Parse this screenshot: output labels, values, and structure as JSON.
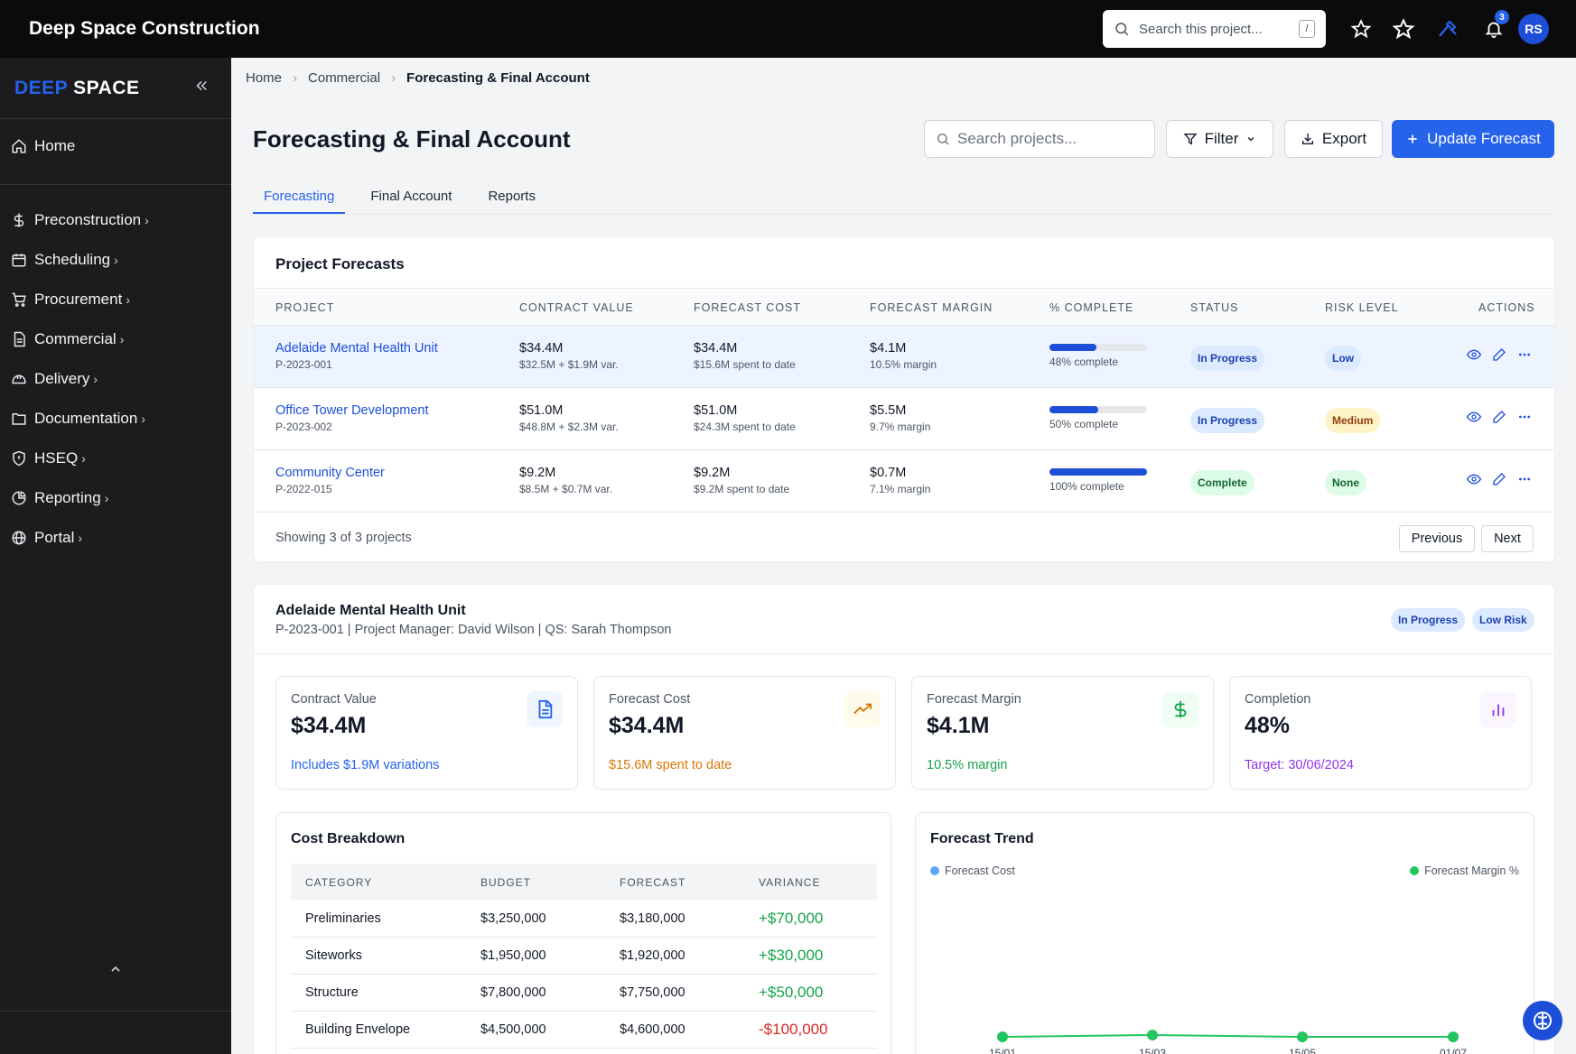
{
  "app": {
    "title": "Deep Space Construction"
  },
  "topbar": {
    "search_placeholder": "Search this project...",
    "search_shortcut": "/",
    "notification_count": "3",
    "avatar_initials": "RS"
  },
  "sidebar": {
    "brand_part1": "DEEP",
    "brand_part2": "SPACE",
    "items": [
      {
        "label": "Home",
        "icon": "home-icon"
      },
      {
        "label": "Preconstruction",
        "icon": "dollar-icon"
      },
      {
        "label": "Scheduling",
        "icon": "calendar-icon"
      },
      {
        "label": "Procurement",
        "icon": "cart-icon"
      },
      {
        "label": "Commercial",
        "icon": "document-icon"
      },
      {
        "label": "Delivery",
        "icon": "hard-hat-icon"
      },
      {
        "label": "Documentation",
        "icon": "folder-icon"
      },
      {
        "label": "HSEQ",
        "icon": "shield-icon"
      },
      {
        "label": "Reporting",
        "icon": "pie-chart-icon"
      },
      {
        "label": "Portal",
        "icon": "globe-icon"
      }
    ]
  },
  "breadcrumb": {
    "home": "Home",
    "section": "Commercial",
    "current": "Forecasting & Final Account"
  },
  "page": {
    "title": "Forecasting & Final Account",
    "search_placeholder": "Search projects...",
    "filter_label": "Filter",
    "export_label": "Export",
    "update_label": "Update Forecast"
  },
  "tabs": [
    {
      "label": "Forecasting",
      "active": true
    },
    {
      "label": "Final Account"
    },
    {
      "label": "Reports"
    }
  ],
  "forecasts": {
    "title": "Project Forecasts",
    "columns": [
      "Project",
      "Contract Value",
      "Forecast Cost",
      "Forecast Margin",
      "% Complete",
      "Status",
      "Risk Level",
      "Actions"
    ],
    "rows": [
      {
        "name": "Adelaide Mental Health Unit",
        "code": "P-2023-001",
        "contract": "$34.4M",
        "contract_sub": "$32.5M + $1.9M var.",
        "cost": "$34.4M",
        "cost_sub": "$15.6M spent to date",
        "margin": "$4.1M",
        "margin_sub": "10.5% margin",
        "complete_pct": 48,
        "complete_text": "48% complete",
        "status": "In Progress",
        "risk": "Low"
      },
      {
        "name": "Office Tower Development",
        "code": "P-2023-002",
        "contract": "$51.0M",
        "contract_sub": "$48.8M + $2.3M var.",
        "cost": "$51.0M",
        "cost_sub": "$24.3M spent to date",
        "margin": "$5.5M",
        "margin_sub": "9.7% margin",
        "complete_pct": 50,
        "complete_text": "50% complete",
        "status": "In Progress",
        "risk": "Medium"
      },
      {
        "name": "Community Center",
        "code": "P-2022-015",
        "contract": "$9.2M",
        "contract_sub": "$8.5M + $0.7M var.",
        "cost": "$9.2M",
        "cost_sub": "$9.2M spent to date",
        "margin": "$0.7M",
        "margin_sub": "7.1% margin",
        "complete_pct": 100,
        "complete_text": "100% complete",
        "status": "Complete",
        "risk": "None"
      }
    ],
    "footer_text": "Showing 3 of 3 projects",
    "prev_label": "Previous",
    "next_label": "Next"
  },
  "detail": {
    "title": "Adelaide Mental Health Unit",
    "subtitle": "P-2023-001 | Project Manager: David Wilson | QS: Sarah Thompson",
    "status_badge": "In Progress",
    "risk_badge": "Low Risk",
    "kpis": [
      {
        "label": "Contract Value",
        "value": "$34.4M",
        "note": "Includes $1.9M variations",
        "color": "#2563eb",
        "icon": "file-text-icon"
      },
      {
        "label": "Forecast Cost",
        "value": "$34.4M",
        "note": "$15.6M spent to date",
        "color": "#d97706",
        "icon": "trending-up-icon"
      },
      {
        "label": "Forecast Margin",
        "value": "$4.1M",
        "note": "10.5% margin",
        "color": "#16a34a",
        "icon": "dollar-icon"
      },
      {
        "label": "Completion",
        "value": "48%",
        "note": "Target: 30/06/2024",
        "color": "#9333ea",
        "icon": "bar-chart-icon"
      }
    ],
    "cost_breakdown": {
      "title": "Cost Breakdown",
      "columns": [
        "CATEGORY",
        "BUDGET",
        "FORECAST",
        "VARIANCE"
      ],
      "rows": [
        {
          "category": "Preliminaries",
          "budget": "$3,250,000",
          "forecast": "$3,180,000",
          "variance": "+$70,000"
        },
        {
          "category": "Siteworks",
          "budget": "$1,950,000",
          "forecast": "$1,920,000",
          "variance": "+$30,000"
        },
        {
          "category": "Structure",
          "budget": "$7,800,000",
          "forecast": "$7,750,000",
          "variance": "+$50,000"
        },
        {
          "category": "Building Envelope",
          "budget": "$4,500,000",
          "forecast": "$4,600,000",
          "variance": "-$100,000"
        }
      ]
    },
    "trend": {
      "title": "Forecast Trend",
      "legend_cost": "Forecast Cost",
      "legend_margin": "Forecast Margin %",
      "cost_color": "#60a5fa",
      "margin_color": "#22c55e"
    }
  },
  "chart_data": {
    "type": "line",
    "title": "Forecast Trend",
    "x": [
      "15/01",
      "15/03",
      "15/05",
      "01/07"
    ],
    "series": [
      {
        "name": "Forecast Margin %",
        "values": [
          10.5,
          10.6,
          10.5,
          10.5
        ]
      }
    ]
  }
}
